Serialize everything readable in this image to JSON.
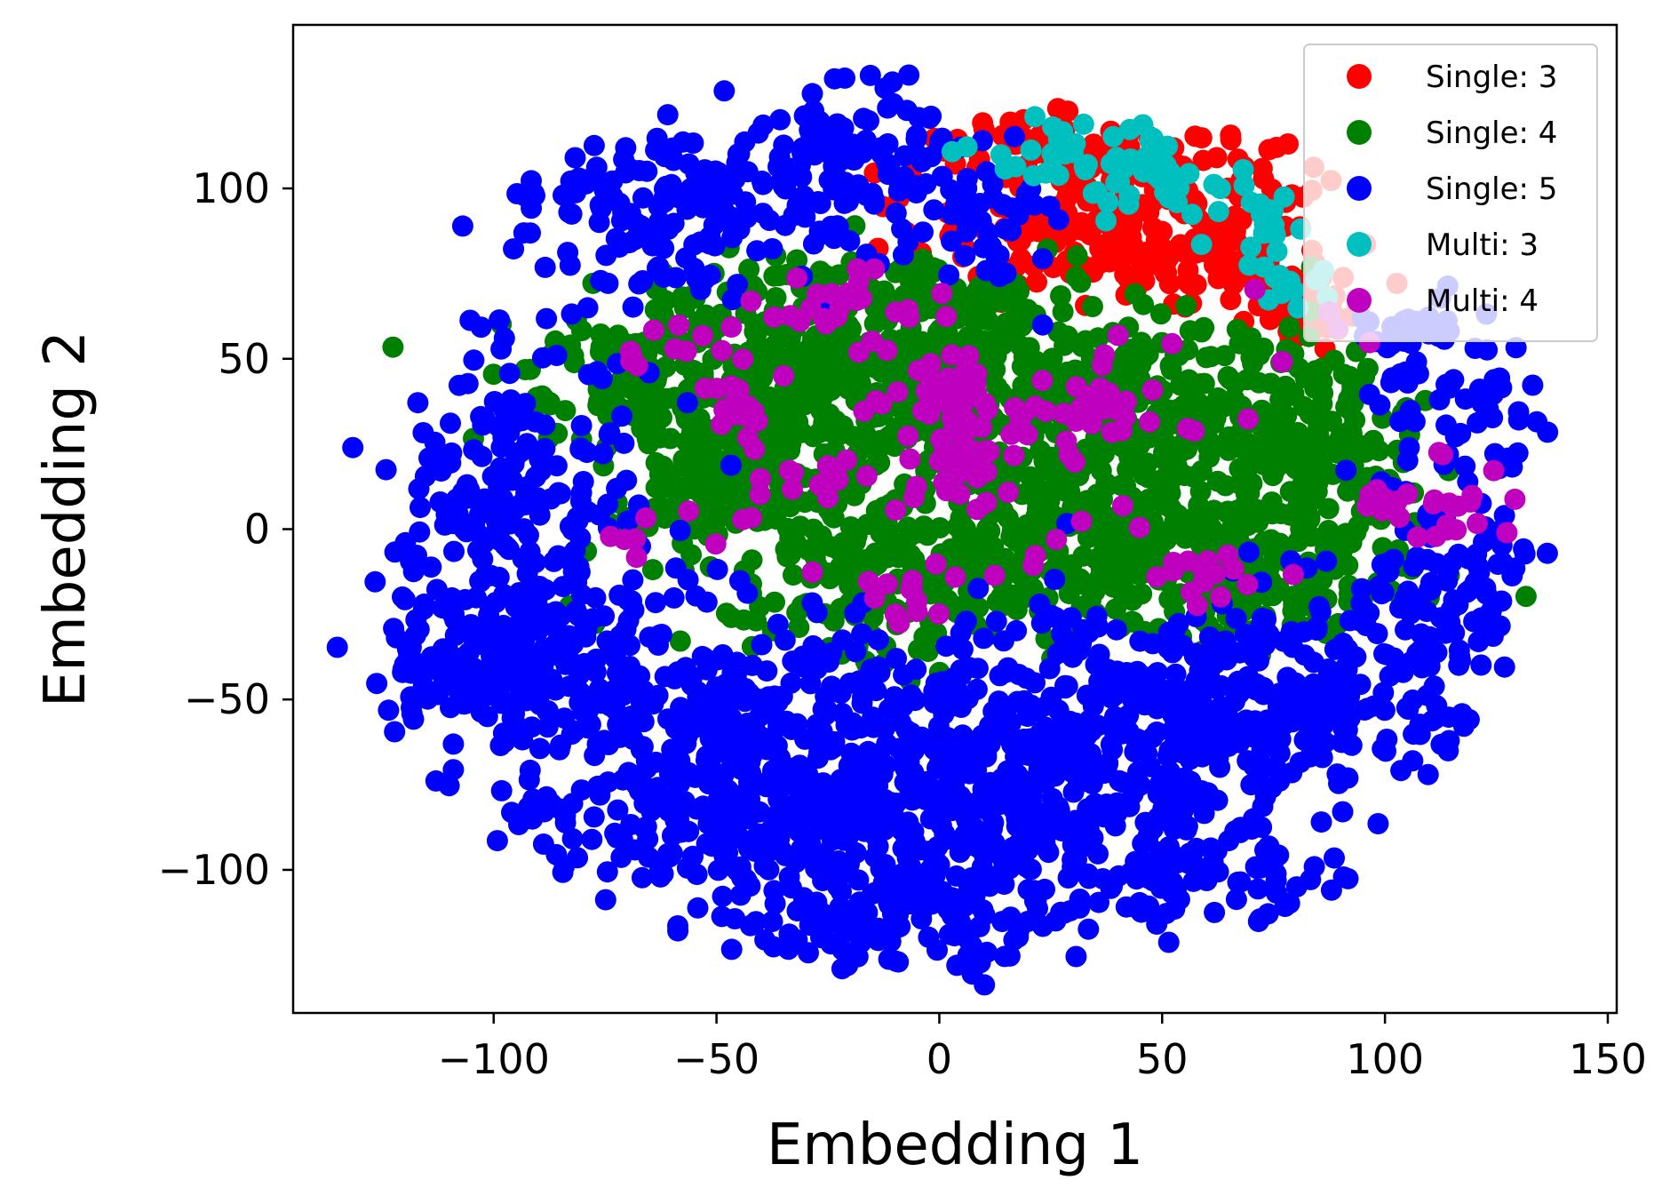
{
  "chart_data": {
    "type": "scatter",
    "title": "",
    "xlabel": "Embedding 1",
    "ylabel": "Embedding 2",
    "xlim": [
      -145,
      152
    ],
    "ylim": [
      -142,
      148
    ],
    "xticks": [
      -100,
      -50,
      0,
      50,
      100,
      150
    ],
    "yticks": [
      -100,
      -50,
      0,
      50,
      100
    ],
    "grid": false,
    "legend_position": "top-right",
    "series": [
      {
        "name": "Single: 3",
        "color": "#ff0000",
        "clusters": [
          {
            "cx": 33,
            "cy": 110,
            "sx": 18,
            "sy": 6,
            "n": 90
          },
          {
            "cx": 35,
            "cy": 88,
            "sx": 22,
            "sy": 5,
            "n": 90
          },
          {
            "cx": 48,
            "cy": 78,
            "sx": 18,
            "sy": 4,
            "n": 60
          },
          {
            "cx": 70,
            "cy": 70,
            "sx": 12,
            "sy": 5,
            "n": 40
          },
          {
            "cx": 80,
            "cy": 63,
            "sx": 6,
            "sy": 6,
            "n": 25
          },
          {
            "cx": 58,
            "cy": 100,
            "sx": 14,
            "sy": 6,
            "n": 40
          }
        ]
      },
      {
        "name": "Single: 4",
        "color": "#008000",
        "clusters": [
          {
            "cx": -60,
            "cy": 45,
            "sx": 18,
            "sy": 12,
            "n": 220
          },
          {
            "cx": -20,
            "cy": 45,
            "sx": 20,
            "sy": 15,
            "n": 240
          },
          {
            "cx": 20,
            "cy": 40,
            "sx": 20,
            "sy": 15,
            "n": 220
          },
          {
            "cx": 65,
            "cy": 30,
            "sx": 20,
            "sy": 15,
            "n": 200
          },
          {
            "cx": 0,
            "cy": -10,
            "sx": 28,
            "sy": 13,
            "n": 300
          },
          {
            "cx": 40,
            "cy": 0,
            "sx": 20,
            "sy": 10,
            "n": 160
          },
          {
            "cx": 75,
            "cy": -15,
            "sx": 16,
            "sy": 8,
            "n": 130
          },
          {
            "cx": -50,
            "cy": 10,
            "sx": 15,
            "sy": 9,
            "n": 120
          },
          {
            "cx": 90,
            "cy": 25,
            "sx": 10,
            "sy": 10,
            "n": 60
          },
          {
            "cx": -5,
            "cy": 70,
            "sx": 18,
            "sy": 5,
            "n": 60
          }
        ]
      },
      {
        "name": "Single: 5",
        "color": "#0000ff",
        "clusters": [
          {
            "cx": -60,
            "cy": 95,
            "sx": 22,
            "sy": 12,
            "n": 170
          },
          {
            "cx": -20,
            "cy": 110,
            "sx": 15,
            "sy": 12,
            "n": 110
          },
          {
            "cx": -95,
            "cy": 10,
            "sx": 15,
            "sy": 22,
            "n": 200
          },
          {
            "cx": -85,
            "cy": -40,
            "sx": 20,
            "sy": 15,
            "n": 180
          },
          {
            "cx": -45,
            "cy": -60,
            "sx": 20,
            "sy": 15,
            "n": 230
          },
          {
            "cx": -35,
            "cy": -90,
            "sx": 20,
            "sy": 15,
            "n": 220
          },
          {
            "cx": 0,
            "cy": -75,
            "sx": 18,
            "sy": 25,
            "n": 250
          },
          {
            "cx": 30,
            "cy": -70,
            "sx": 18,
            "sy": 20,
            "n": 260
          },
          {
            "cx": 60,
            "cy": -50,
            "sx": 15,
            "sy": 15,
            "n": 160
          },
          {
            "cx": 60,
            "cy": -100,
            "sx": 18,
            "sy": 10,
            "n": 90
          },
          {
            "cx": -10,
            "cy": -115,
            "sx": 20,
            "sy": 10,
            "n": 100
          },
          {
            "cx": 95,
            "cy": -50,
            "sx": 15,
            "sy": 15,
            "n": 110
          },
          {
            "cx": 115,
            "cy": -20,
            "sx": 12,
            "sy": 15,
            "n": 80
          },
          {
            "cx": 115,
            "cy": 35,
            "sx": 12,
            "sy": 15,
            "n": 70
          },
          {
            "cx": 105,
            "cy": 60,
            "sx": 5,
            "sy": 3,
            "n": 25
          },
          {
            "cx": -105,
            "cy": -45,
            "sx": 10,
            "sy": 10,
            "n": 60
          },
          {
            "cx": -90,
            "cy": -80,
            "sx": 8,
            "sy": 8,
            "n": 25
          },
          {
            "cx": 10,
            "cy": 90,
            "sx": 10,
            "sy": 10,
            "n": 40
          }
        ]
      },
      {
        "name": "Multi: 3",
        "color": "#00bfbf",
        "clusters": [
          {
            "cx": 30,
            "cy": 110,
            "sx": 10,
            "sy": 5,
            "n": 40
          },
          {
            "cx": 50,
            "cy": 100,
            "sx": 10,
            "sy": 6,
            "n": 25
          },
          {
            "cx": 70,
            "cy": 88,
            "sx": 6,
            "sy": 8,
            "n": 15
          },
          {
            "cx": 80,
            "cy": 72,
            "sx": 6,
            "sy": 5,
            "n": 12
          }
        ]
      },
      {
        "name": "Multi: 4",
        "color": "#bf00bf",
        "clusters": [
          {
            "cx": 0,
            "cy": 40,
            "sx": 6,
            "sy": 6,
            "n": 50
          },
          {
            "cx": 8,
            "cy": 20,
            "sx": 8,
            "sy": 8,
            "n": 35
          },
          {
            "cx": -20,
            "cy": 65,
            "sx": 10,
            "sy": 5,
            "n": 25
          },
          {
            "cx": -45,
            "cy": 35,
            "sx": 6,
            "sy": 4,
            "n": 20
          },
          {
            "cx": 40,
            "cy": 35,
            "sx": 10,
            "sy": 5,
            "n": 30
          },
          {
            "cx": 115,
            "cy": 10,
            "sx": 6,
            "sy": 7,
            "n": 20
          },
          {
            "cx": 100,
            "cy": 8,
            "sx": 3,
            "sy": 3,
            "n": 8
          },
          {
            "cx": 60,
            "cy": -15,
            "sx": 8,
            "sy": 4,
            "n": 15
          },
          {
            "cx": -30,
            "cy": 15,
            "sx": 8,
            "sy": 3,
            "n": 12
          },
          {
            "cx": -60,
            "cy": 55,
            "sx": 12,
            "sy": 5,
            "n": 12
          },
          {
            "cx": -10,
            "cy": -20,
            "sx": 8,
            "sy": 6,
            "n": 12
          },
          {
            "cx": 30,
            "cy": -5,
            "sx": 12,
            "sy": 10,
            "n": 10
          },
          {
            "cx": 60,
            "cy": 55,
            "sx": 25,
            "sy": 8,
            "n": 10
          },
          {
            "cx": -60,
            "cy": 5,
            "sx": 15,
            "sy": 10,
            "n": 10
          }
        ]
      }
    ]
  }
}
